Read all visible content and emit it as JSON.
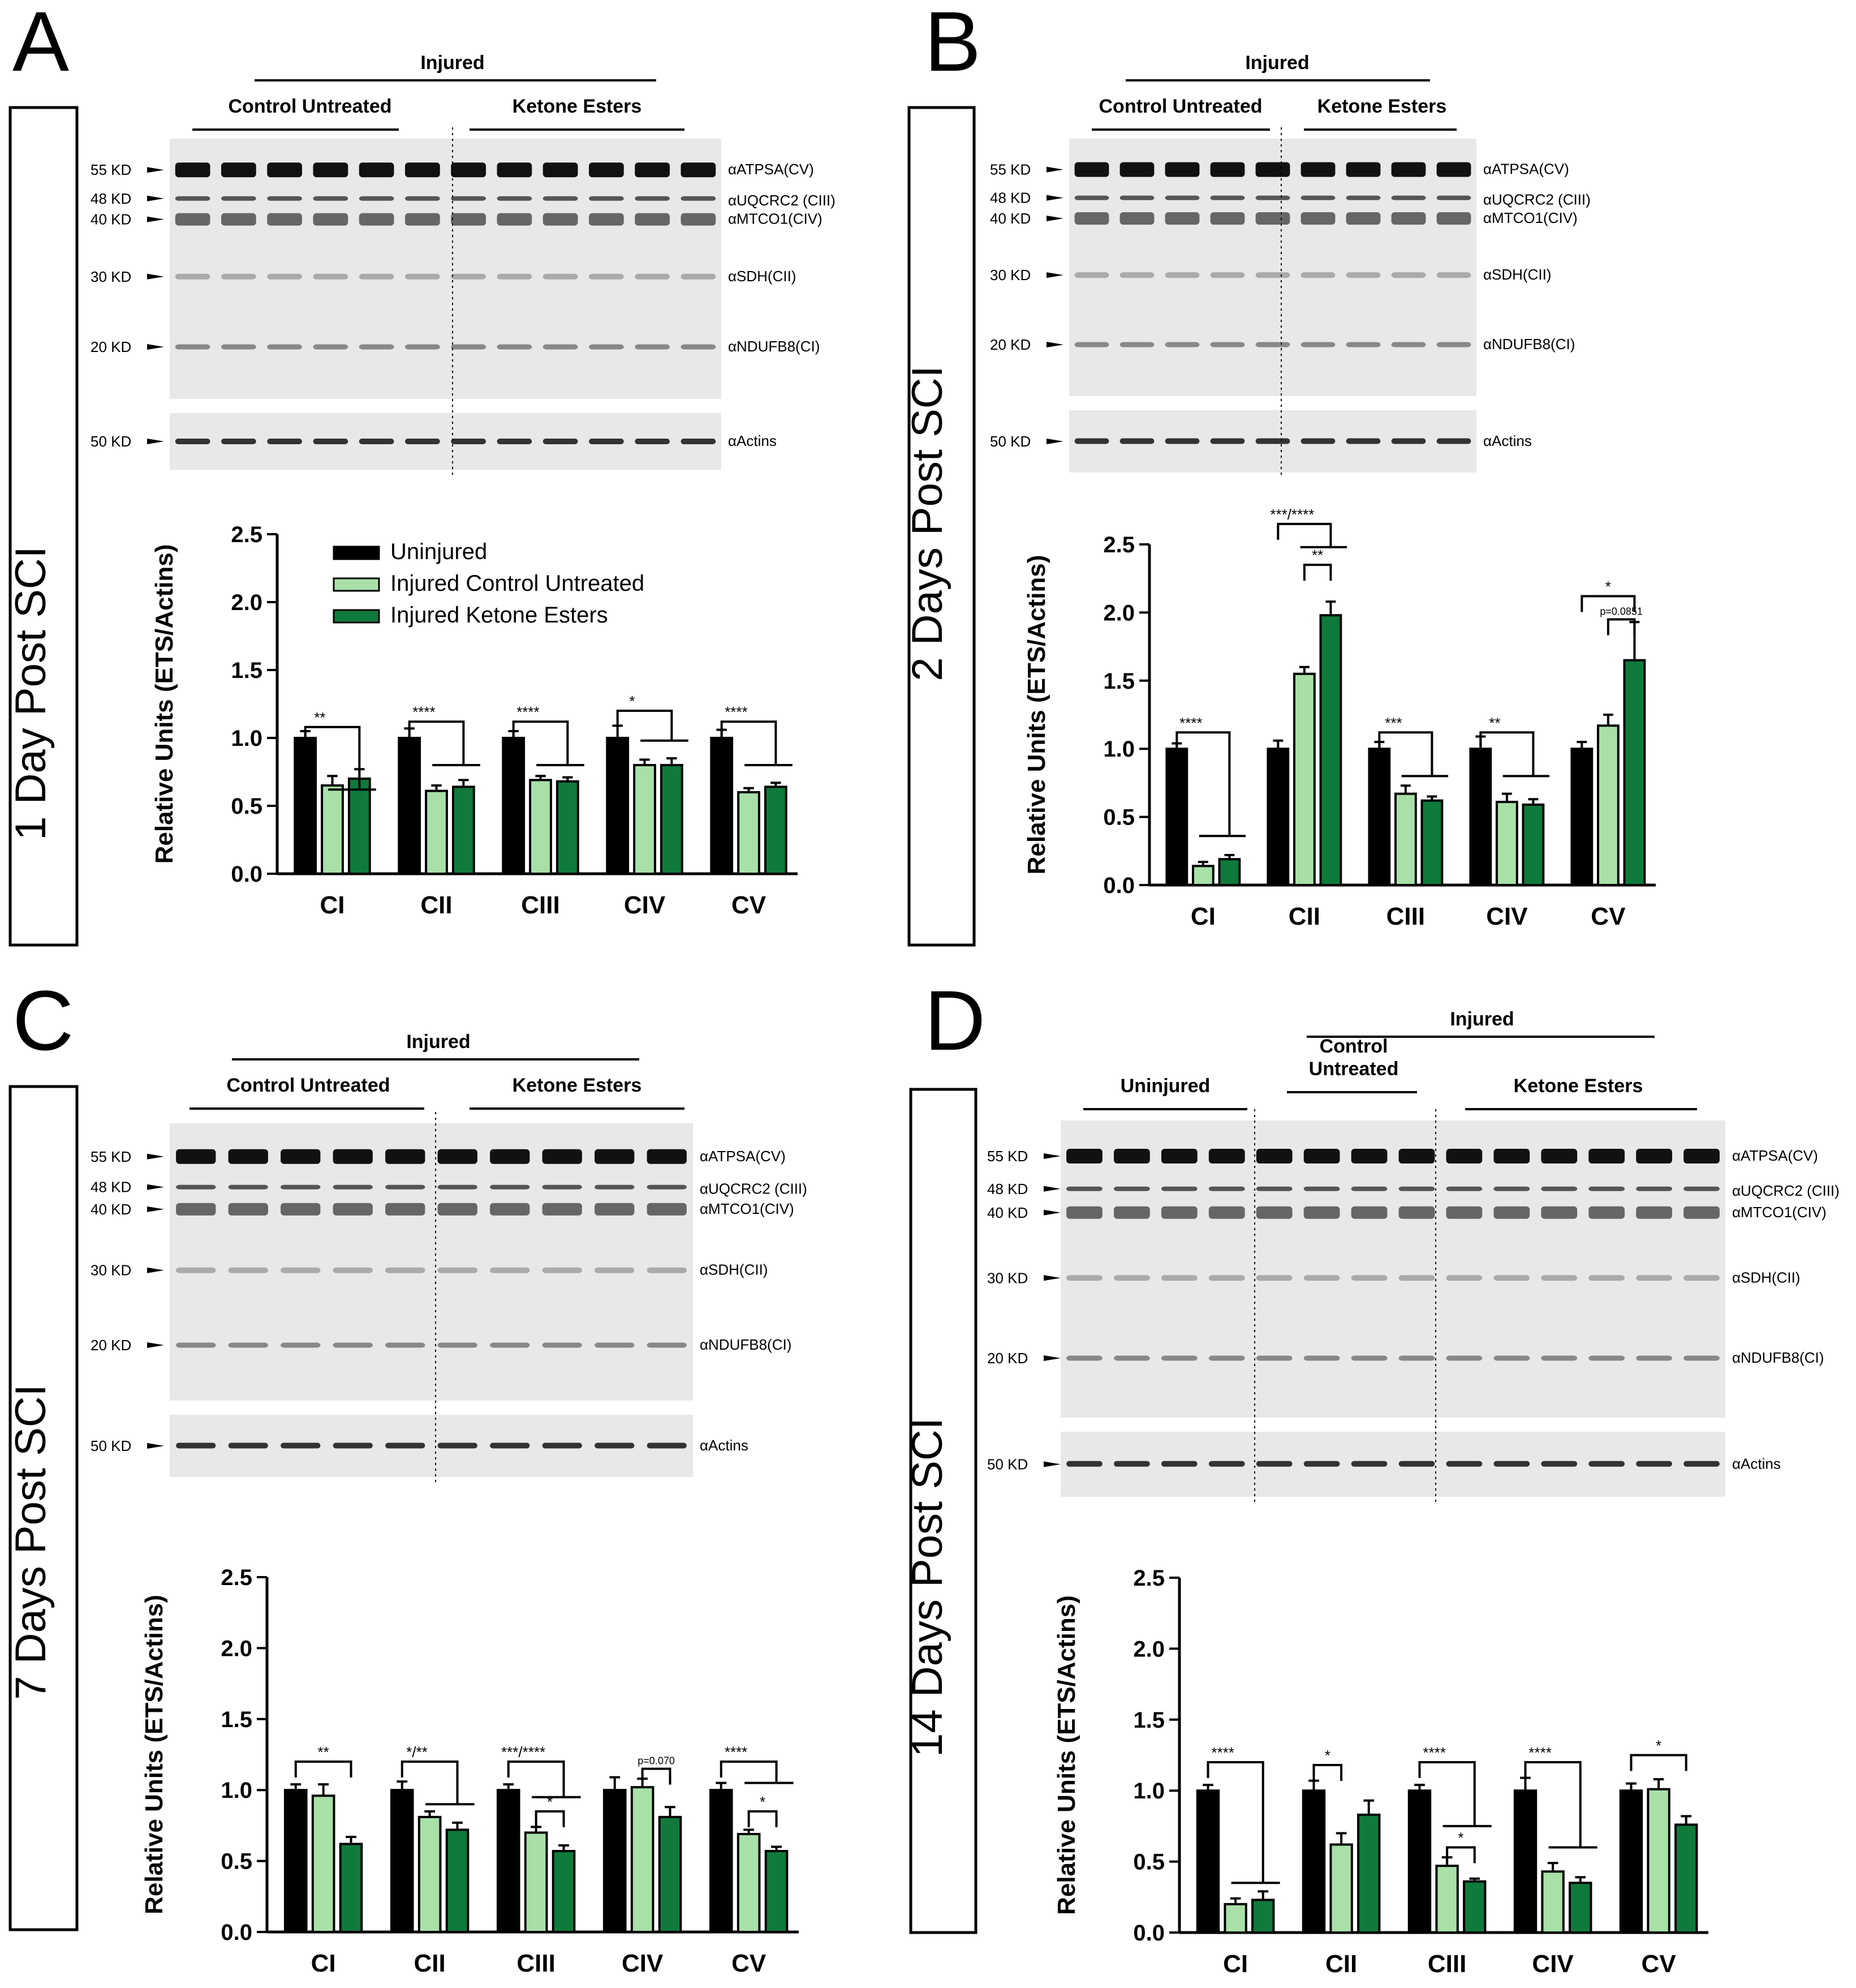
{
  "colors": {
    "uninjured": "#000000",
    "control": "#a8e0a8",
    "ketone": "#0f7a3c",
    "bar_stroke": "#000000"
  },
  "markers": [
    "55 KD",
    "48 KD",
    "40 KD",
    "30 KD",
    "20 KD",
    "50 KD"
  ],
  "antibodies": [
    "αATPSA(CV)",
    "αUQCRC2 (CIII)",
    "αMTCO1(CIV)",
    "αSDH(CII)",
    "αNDUFB8(CI)",
    "αActins"
  ],
  "legend": [
    "Uninjured",
    "Injured Control Untreated",
    "Injured Ketone Esters"
  ],
  "panels": [
    {
      "letter": "A",
      "timepoint": "1 Day Post SCI",
      "injured_label": "Injured",
      "group_labels": [
        "Control Untreated",
        "Ketone Esters"
      ]
    },
    {
      "letter": "B",
      "timepoint": "2 Days Post SCI",
      "injured_label": "Injured",
      "group_labels": [
        "Control Untreated",
        "Ketone Esters"
      ]
    },
    {
      "letter": "C",
      "timepoint": "7 Days Post SCI",
      "injured_label": "Injured",
      "group_labels": [
        "Control Untreated",
        "Ketone Esters"
      ]
    },
    {
      "letter": "D",
      "timepoint": "14 Days Post SCI",
      "injured_label": "Injured",
      "group_labels": [
        "Uninjured",
        "Control\nUntreated",
        "Ketone Esters"
      ]
    }
  ],
  "chart_data": [
    {
      "panel": "A",
      "type": "bar",
      "categories": [
        "CI",
        "CII",
        "CIII",
        "CIV",
        "CV"
      ],
      "ylabel": "Relative Units (ETS/Actins)",
      "ylim": [
        0,
        2.5
      ],
      "yticks": [
        "0.0",
        "0.5",
        "1.0",
        "1.5",
        "2.0",
        "2.5"
      ],
      "series": [
        {
          "name": "Uninjured",
          "values": [
            1.0,
            1.0,
            1.0,
            1.0,
            1.0
          ],
          "err": [
            0.05,
            0.07,
            0.05,
            0.09,
            0.06
          ]
        },
        {
          "name": "Injured Control Untreated",
          "values": [
            0.65,
            0.61,
            0.69,
            0.8,
            0.6
          ],
          "err": [
            0.07,
            0.04,
            0.03,
            0.04,
            0.03
          ]
        },
        {
          "name": "Injured Ketone Esters",
          "values": [
            0.7,
            0.64,
            0.68,
            0.8,
            0.64
          ],
          "err": [
            0.07,
            0.05,
            0.03,
            0.05,
            0.03
          ]
        }
      ],
      "annotations": [
        "**",
        "****",
        "****",
        "*",
        "****"
      ]
    },
    {
      "panel": "B",
      "type": "bar",
      "categories": [
        "CI",
        "CII",
        "CIII",
        "CIV",
        "CV"
      ],
      "ylabel": "Relative Units (ETS/Actins)",
      "ylim": [
        0,
        2.5
      ],
      "yticks": [
        "0.0",
        "0.5",
        "1.0",
        "1.5",
        "2.0",
        "2.5"
      ],
      "series": [
        {
          "name": "Uninjured",
          "values": [
            1.0,
            1.0,
            1.0,
            1.0,
            1.0
          ],
          "err": [
            0.04,
            0.06,
            0.05,
            0.09,
            0.05
          ]
        },
        {
          "name": "Injured Control Untreated",
          "values": [
            0.14,
            1.55,
            0.67,
            0.61,
            1.17
          ],
          "err": [
            0.03,
            0.05,
            0.06,
            0.06,
            0.08
          ]
        },
        {
          "name": "Injured Ketone Esters",
          "values": [
            0.19,
            1.98,
            0.62,
            0.59,
            1.65
          ],
          "err": [
            0.03,
            0.1,
            0.03,
            0.04,
            0.28
          ]
        }
      ],
      "annotations": [
        "****",
        "***/****",
        "**",
        "***",
        "**",
        "*",
        "p=0.0851"
      ]
    },
    {
      "panel": "C",
      "type": "bar",
      "categories": [
        "CI",
        "CII",
        "CIII",
        "CIV",
        "CV"
      ],
      "ylabel": "Relative Units (ETS/Actins)",
      "ylim": [
        0,
        2.5
      ],
      "yticks": [
        "0.0",
        "0.5",
        "1.0",
        "1.5",
        "2.0",
        "2.5"
      ],
      "series": [
        {
          "name": "Uninjured",
          "values": [
            1.0,
            1.0,
            1.0,
            1.0,
            1.0
          ],
          "err": [
            0.04,
            0.06,
            0.04,
            0.09,
            0.05
          ]
        },
        {
          "name": "Injured Control Untreated",
          "values": [
            0.96,
            0.81,
            0.7,
            1.02,
            0.69
          ],
          "err": [
            0.08,
            0.04,
            0.04,
            0.06,
            0.03
          ]
        },
        {
          "name": "Injured Ketone Esters",
          "values": [
            0.62,
            0.72,
            0.57,
            0.81,
            0.57
          ],
          "err": [
            0.05,
            0.05,
            0.04,
            0.07,
            0.03
          ]
        }
      ],
      "annotations": [
        "**",
        "*/**",
        "***/****",
        "*",
        "p=0.070",
        "****",
        "*"
      ]
    },
    {
      "panel": "D",
      "type": "bar",
      "categories": [
        "CI",
        "CII",
        "CIII",
        "CIV",
        "CV"
      ],
      "ylabel": "Relative Units (ETS/Actins)",
      "ylim": [
        0,
        2.5
      ],
      "yticks": [
        "0.0",
        "0.5",
        "1.0",
        "1.5",
        "2.0",
        "2.5"
      ],
      "series": [
        {
          "name": "Uninjured",
          "values": [
            1.0,
            1.0,
            1.0,
            1.0,
            1.0
          ],
          "err": [
            0.04,
            0.07,
            0.04,
            0.09,
            0.05
          ]
        },
        {
          "name": "Injured Control Untreated",
          "values": [
            0.2,
            0.62,
            0.47,
            0.43,
            1.01
          ],
          "err": [
            0.04,
            0.08,
            0.06,
            0.06,
            0.07
          ]
        },
        {
          "name": "Injured Ketone Esters",
          "values": [
            0.23,
            0.83,
            0.36,
            0.35,
            0.76
          ],
          "err": [
            0.06,
            0.1,
            0.02,
            0.04,
            0.06
          ]
        }
      ],
      "annotations": [
        "****",
        "*",
        "****",
        "*",
        "****",
        "*"
      ]
    }
  ]
}
